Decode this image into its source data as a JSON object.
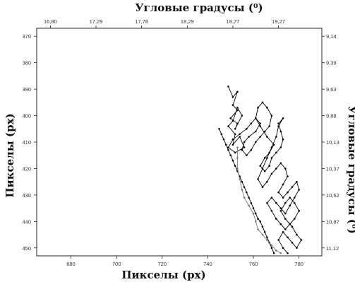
{
  "chart_data": {
    "type": "line",
    "xlabel": "Пикселы (px)",
    "ylabel": "Пикселы (px)",
    "x2label": "Угловые градусы (⁰)",
    "y2label": "Угловые градусы (⁰)",
    "xlim": [
      665,
      790
    ],
    "ylim": [
      367,
      453
    ],
    "y_inverted": true,
    "grid": false,
    "x_ticks": [
      680,
      700,
      720,
      740,
      760,
      780
    ],
    "y_ticks": [
      370,
      380,
      390,
      400,
      410,
      420,
      430,
      440,
      450
    ],
    "x2_ticks": [
      {
        "label": "16,80",
        "x": 671
      },
      {
        "label": "17,29",
        "x": 691
      },
      {
        "label": "17,78",
        "x": 711
      },
      {
        "label": "18,29",
        "x": 731
      },
      {
        "label": "18,77",
        "x": 751
      },
      {
        "label": "19,27",
        "x": 771
      }
    ],
    "y2_ticks": [
      {
        "label": "9,14",
        "y": 370
      },
      {
        "label": "9,39",
        "y": 380
      },
      {
        "label": "9,63",
        "y": 390
      },
      {
        "label": "9,88",
        "y": 400
      },
      {
        "label": "10,13",
        "y": 410
      },
      {
        "label": "10,37",
        "y": 420
      },
      {
        "label": "10,62",
        "y": 430
      },
      {
        "label": "10,87",
        "y": 440
      },
      {
        "label": "11,12",
        "y": 450
      }
    ],
    "series": [
      {
        "color": "#000000",
        "marker": "dot",
        "points": [
          [
            749,
            389
          ],
          [
            751,
            393
          ],
          [
            753,
            391
          ],
          [
            751,
            396
          ],
          [
            753,
            398
          ],
          [
            750,
            401
          ],
          [
            753,
            403
          ],
          [
            752,
            405
          ],
          [
            755,
            400
          ],
          [
            753,
            397
          ],
          [
            751,
            402
          ],
          [
            749,
            404
          ],
          [
            752,
            407
          ],
          [
            751,
            411
          ],
          [
            754,
            408
          ],
          [
            756,
            412
          ],
          [
            752,
            414
          ],
          [
            749,
            412
          ],
          [
            751,
            409
          ],
          [
            754,
            407
          ],
          [
            757,
            405
          ],
          [
            759,
            403
          ],
          [
            761,
            401
          ],
          [
            763,
            403
          ],
          [
            761,
            406
          ],
          [
            758,
            408
          ],
          [
            756,
            410
          ],
          [
            755,
            413
          ],
          [
            757,
            415
          ],
          [
            759,
            413
          ],
          [
            761,
            410
          ],
          [
            763,
            408
          ],
          [
            765,
            406
          ],
          [
            767,
            404
          ],
          [
            768,
            400
          ],
          [
            766,
            397
          ],
          [
            764,
            395
          ],
          [
            762,
            397
          ],
          [
            761,
            401
          ],
          [
            763,
            404
          ],
          [
            766,
            408
          ],
          [
            769,
            411
          ],
          [
            767,
            414
          ],
          [
            765,
            416
          ],
          [
            763,
            419
          ],
          [
            765,
            421
          ],
          [
            767,
            419
          ],
          [
            768,
            416
          ],
          [
            770,
            414
          ],
          [
            772,
            412
          ],
          [
            773,
            409
          ],
          [
            772,
            406
          ],
          [
            771,
            403
          ],
          [
            773,
            401
          ],
          [
            771,
            404
          ],
          [
            770,
            408
          ],
          [
            768,
            412
          ],
          [
            766,
            416
          ],
          [
            764,
            420
          ],
          [
            762,
            424
          ],
          [
            764,
            427
          ],
          [
            766,
            425
          ],
          [
            768,
            422
          ],
          [
            770,
            420
          ],
          [
            772,
            418
          ],
          [
            774,
            420
          ],
          [
            775,
            423
          ],
          [
            773,
            426
          ],
          [
            771,
            429
          ],
          [
            773,
            431
          ],
          [
            775,
            429
          ],
          [
            777,
            427
          ],
          [
            779,
            425
          ],
          [
            780,
            428
          ],
          [
            778,
            431
          ],
          [
            776,
            434
          ],
          [
            774,
            437
          ],
          [
            772,
            435
          ],
          [
            770,
            433
          ],
          [
            768,
            431
          ],
          [
            766,
            433
          ],
          [
            768,
            436
          ],
          [
            770,
            439
          ],
          [
            772,
            441
          ],
          [
            774,
            443
          ],
          [
            776,
            441
          ],
          [
            778,
            439
          ],
          [
            780,
            436
          ],
          [
            778,
            433
          ],
          [
            776,
            431
          ],
          [
            774,
            433
          ],
          [
            772,
            436
          ],
          [
            774,
            439
          ],
          [
            777,
            442
          ],
          [
            779,
            445
          ],
          [
            781,
            447
          ],
          [
            779,
            450
          ],
          [
            777,
            448
          ],
          [
            775,
            446
          ],
          [
            773,
            444
          ],
          [
            771,
            447
          ],
          [
            773,
            450
          ],
          [
            775,
            452
          ]
        ]
      },
      {
        "color": "#000000",
        "marker": "dot",
        "points": [
          [
            745,
            405
          ],
          [
            746,
            407
          ],
          [
            747,
            409
          ],
          [
            748,
            411
          ],
          [
            749,
            413
          ],
          [
            750,
            415
          ],
          [
            751,
            417
          ],
          [
            752,
            419
          ],
          [
            753,
            421
          ],
          [
            754,
            423
          ],
          [
            755,
            425
          ],
          [
            756,
            427
          ],
          [
            757,
            429
          ],
          [
            758,
            431
          ],
          [
            759,
            433
          ],
          [
            760,
            435
          ],
          [
            761,
            437
          ],
          [
            762,
            439
          ],
          [
            763,
            440
          ],
          [
            764,
            442
          ],
          [
            765,
            444
          ],
          [
            766,
            446
          ],
          [
            767,
            448
          ],
          [
            768,
            450
          ],
          [
            769,
            452
          ]
        ]
      },
      {
        "color": "#777777",
        "marker": "dot",
        "points": [
          [
            753,
            412
          ],
          [
            753,
            416
          ],
          [
            753,
            420
          ],
          [
            754,
            424
          ],
          [
            755,
            428
          ],
          [
            756,
            431
          ],
          [
            758,
            434
          ],
          [
            760,
            437
          ],
          [
            761,
            440
          ],
          [
            762,
            443
          ],
          [
            764,
            445
          ],
          [
            766,
            447
          ],
          [
            768,
            449
          ],
          [
            770,
            451
          ],
          [
            772,
            452
          ]
        ]
      }
    ]
  }
}
